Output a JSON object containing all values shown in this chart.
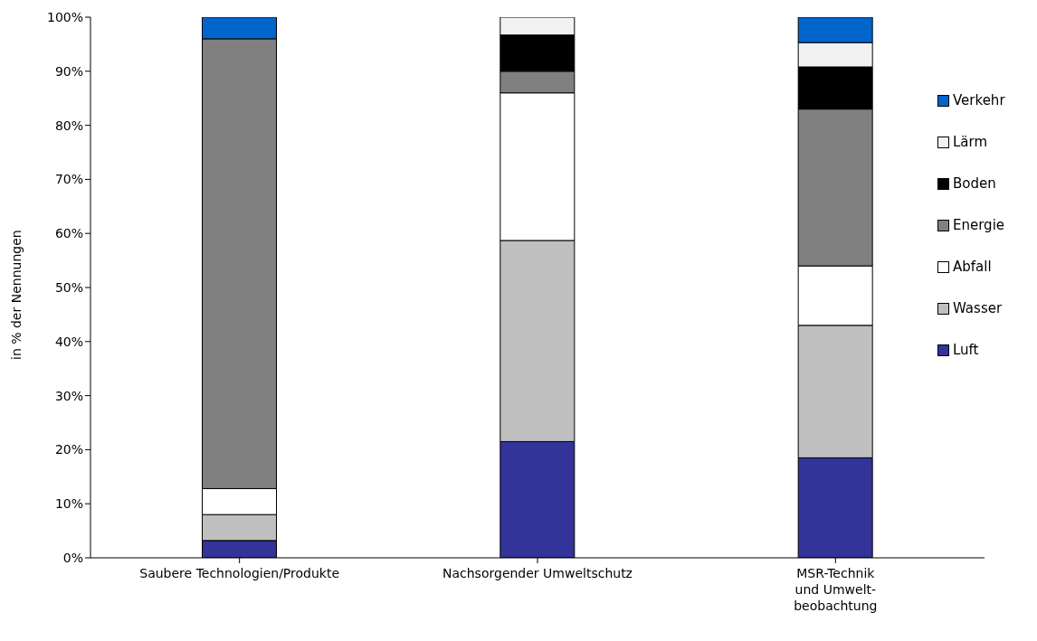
{
  "chart_data": {
    "type": "bar",
    "stacked": true,
    "ylabel": "in % der Nennungen",
    "categories": [
      "Saubere Technologien/Produkte",
      "Nachsorgender Umweltschutz",
      "MSR-Technik\nund Umwelt-\nbeobachtung"
    ],
    "series": [
      {
        "name": "Luft",
        "color": "#333399",
        "values": [
          3.2,
          21.5,
          18.5
        ]
      },
      {
        "name": "Wasser",
        "color": "#c0c0c0",
        "values": [
          4.8,
          37.2,
          24.5
        ]
      },
      {
        "name": "Abfall",
        "color": "#ffffff",
        "values": [
          4.8,
          27.3,
          11
        ]
      },
      {
        "name": "Energie",
        "color": "#808080",
        "values": [
          83.2,
          4,
          29
        ]
      },
      {
        "name": "Boden",
        "color": "#000000",
        "values": [
          0,
          6.7,
          7.8
        ]
      },
      {
        "name": "Lärm",
        "color": "#f2f2f2",
        "values": [
          0,
          3.3,
          4.5
        ]
      },
      {
        "name": "Verkehr",
        "color": "#0066cc",
        "values": [
          4,
          0,
          4.7
        ]
      }
    ],
    "ylim": [
      0,
      100
    ],
    "yticks": [
      {
        "value": 0,
        "label": "0%"
      },
      {
        "value": 10,
        "label": "10%"
      },
      {
        "value": 20,
        "label": "20%"
      },
      {
        "value": 30,
        "label": "30%"
      },
      {
        "value": 40,
        "label": "40%"
      },
      {
        "value": 50,
        "label": "50%"
      },
      {
        "value": 60,
        "label": "60%"
      },
      {
        "value": 70,
        "label": "70%"
      },
      {
        "value": 80,
        "label": "80%"
      },
      {
        "value": 90,
        "label": "90%"
      },
      {
        "value": 100,
        "label": "100%"
      }
    ],
    "grid": false,
    "legend": "right"
  }
}
